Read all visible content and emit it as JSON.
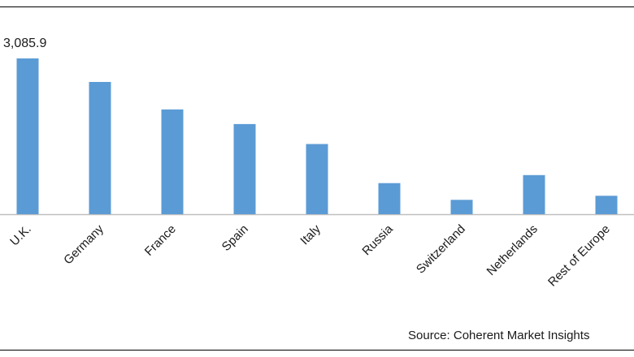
{
  "chart_data": {
    "type": "bar",
    "categories": [
      "U.K.",
      "Germany",
      "France",
      "Spain",
      "Italy",
      "Russia",
      "Switzerland",
      "Netherlands",
      "Rest of Europe"
    ],
    "values": [
      3085.9,
      2620,
      2075,
      1785,
      1390,
      615,
      285,
      775,
      365
    ],
    "data_labels": [
      "3,085.9",
      "",
      "",
      "",
      "",
      "",
      "",
      "",
      ""
    ],
    "ylim": [
      0,
      3085.9
    ],
    "grid": false,
    "bar_color": "#5b9bd5",
    "axis_color": "#bfbfbf",
    "source": "Source: Coherent Market Insights"
  }
}
